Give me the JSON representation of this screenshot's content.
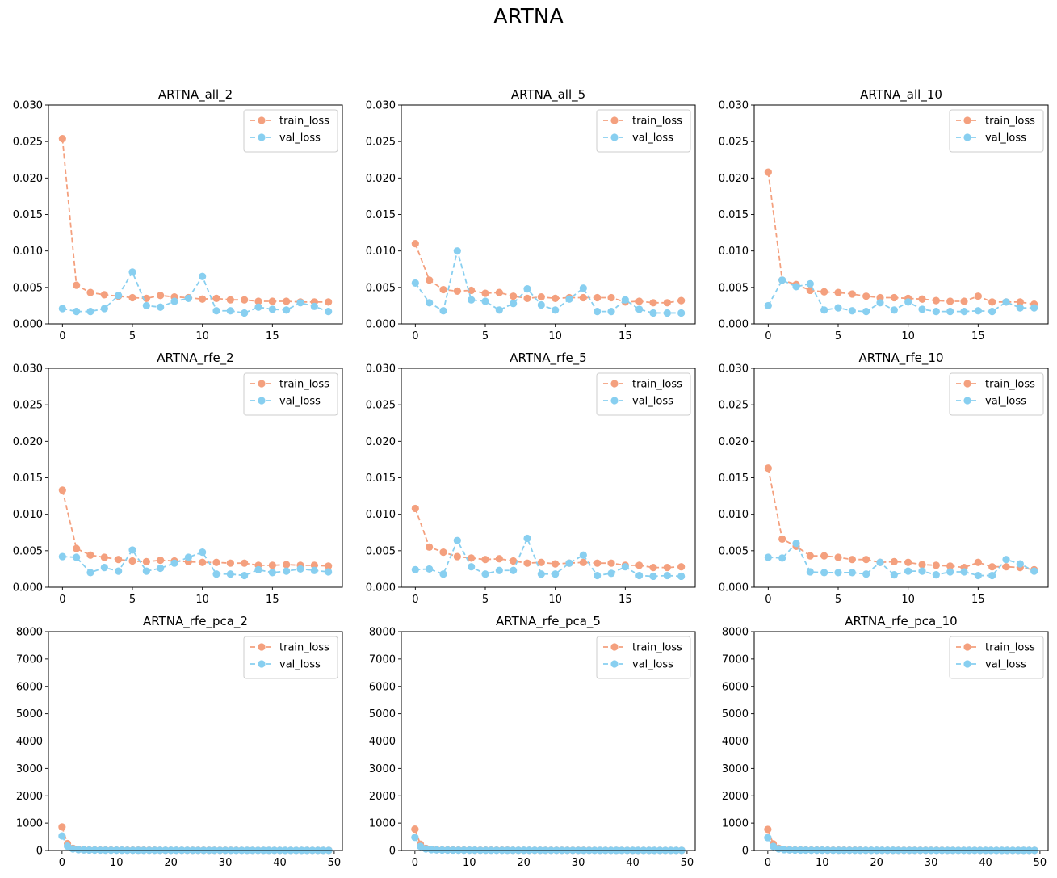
{
  "figure": {
    "title": "ARTNA",
    "colors": {
      "train_loss": "#F4A07E",
      "val_loss": "#88CFF0"
    }
  },
  "chart_data": [
    {
      "type": "line",
      "title": "ARTNA_all_2",
      "ylim": [
        0,
        0.03
      ],
      "xlim": [
        -1.0,
        20.0
      ],
      "yticks": [
        0,
        0.005,
        0.01,
        0.015,
        0.02,
        0.025,
        0.03
      ],
      "ytick_labels": [
        "0.000",
        "0.005",
        "0.010",
        "0.015",
        "0.020",
        "0.025",
        "0.030"
      ],
      "xticks": [
        0,
        5,
        10,
        15
      ],
      "xtick_labels": [
        "0",
        "5",
        "10",
        "15"
      ],
      "legend": "top-right",
      "series": [
        {
          "name": "train_loss",
          "values": [
            0.0254,
            0.0053,
            0.0043,
            0.004,
            0.0038,
            0.0036,
            0.0035,
            0.0039,
            0.0037,
            0.0036,
            0.0034,
            0.0035,
            0.0033,
            0.0033,
            0.0031,
            0.0031,
            0.0031,
            0.003,
            0.003,
            0.003
          ]
        },
        {
          "name": "val_loss",
          "values": [
            0.0021,
            0.0017,
            0.0017,
            0.0021,
            0.0039,
            0.0071,
            0.0025,
            0.0023,
            0.0031,
            0.0035,
            0.0065,
            0.0018,
            0.0018,
            0.0015,
            0.0023,
            0.002,
            0.0019,
            0.0029,
            0.0024,
            0.0017
          ]
        }
      ]
    },
    {
      "type": "line",
      "title": "ARTNA_all_5",
      "ylim": [
        0,
        0.03
      ],
      "xlim": [
        -1.0,
        20.0
      ],
      "yticks": [
        0,
        0.005,
        0.01,
        0.015,
        0.02,
        0.025,
        0.03
      ],
      "ytick_labels": [
        "0.000",
        "0.005",
        "0.010",
        "0.015",
        "0.020",
        "0.025",
        "0.030"
      ],
      "xticks": [
        0,
        5,
        10,
        15
      ],
      "xtick_labels": [
        "0",
        "5",
        "10",
        "15"
      ],
      "legend": "top-right",
      "series": [
        {
          "name": "train_loss",
          "values": [
            0.011,
            0.006,
            0.0047,
            0.0045,
            0.0046,
            0.0042,
            0.0043,
            0.0038,
            0.0035,
            0.0037,
            0.0035,
            0.0036,
            0.0036,
            0.0036,
            0.0036,
            0.003,
            0.0031,
            0.0029,
            0.0029,
            0.0032
          ]
        },
        {
          "name": "val_loss",
          "values": [
            0.0056,
            0.0029,
            0.0018,
            0.01,
            0.0033,
            0.0031,
            0.0019,
            0.0028,
            0.0048,
            0.0026,
            0.0019,
            0.0034,
            0.0049,
            0.0017,
            0.0017,
            0.0033,
            0.002,
            0.0015,
            0.0015,
            0.0015
          ]
        }
      ]
    },
    {
      "type": "line",
      "title": "ARTNA_all_10",
      "ylim": [
        0,
        0.03
      ],
      "xlim": [
        -1.0,
        20.0
      ],
      "yticks": [
        0,
        0.005,
        0.01,
        0.015,
        0.02,
        0.025,
        0.03
      ],
      "ytick_labels": [
        "0.000",
        "0.005",
        "0.010",
        "0.015",
        "0.020",
        "0.025",
        "0.030"
      ],
      "xticks": [
        0,
        5,
        10,
        15
      ],
      "xtick_labels": [
        "0",
        "5",
        "10",
        "15"
      ],
      "legend": "top-right",
      "series": [
        {
          "name": "train_loss",
          "values": [
            0.0208,
            0.006,
            0.0054,
            0.0046,
            0.0044,
            0.0043,
            0.0041,
            0.0038,
            0.0036,
            0.0036,
            0.0035,
            0.0034,
            0.0032,
            0.0031,
            0.0031,
            0.0038,
            0.003,
            0.003,
            0.003,
            0.0027
          ]
        },
        {
          "name": "val_loss",
          "values": [
            0.0025,
            0.006,
            0.0051,
            0.0055,
            0.0019,
            0.0022,
            0.0018,
            0.0017,
            0.0029,
            0.0019,
            0.003,
            0.002,
            0.0017,
            0.0017,
            0.0017,
            0.0018,
            0.0017,
            0.003,
            0.0022,
            0.0022
          ]
        }
      ]
    },
    {
      "type": "line",
      "title": "ARTNA_rfe_2",
      "ylim": [
        0,
        0.03
      ],
      "xlim": [
        -1.0,
        20.0
      ],
      "yticks": [
        0,
        0.005,
        0.01,
        0.015,
        0.02,
        0.025,
        0.03
      ],
      "ytick_labels": [
        "0.000",
        "0.005",
        "0.010",
        "0.015",
        "0.020",
        "0.025",
        "0.030"
      ],
      "xticks": [
        0,
        5,
        10,
        15
      ],
      "xtick_labels": [
        "0",
        "5",
        "10",
        "15"
      ],
      "legend": "top-right",
      "series": [
        {
          "name": "train_loss",
          "values": [
            0.0133,
            0.0053,
            0.0044,
            0.0041,
            0.0038,
            0.0036,
            0.0035,
            0.0037,
            0.0036,
            0.0035,
            0.0034,
            0.0034,
            0.0033,
            0.0033,
            0.003,
            0.003,
            0.0031,
            0.003,
            0.003,
            0.0029
          ]
        },
        {
          "name": "val_loss",
          "values": [
            0.0042,
            0.0041,
            0.002,
            0.0027,
            0.0022,
            0.0051,
            0.0022,
            0.0026,
            0.0033,
            0.0041,
            0.0048,
            0.0018,
            0.0018,
            0.0016,
            0.0024,
            0.002,
            0.0022,
            0.0025,
            0.0023,
            0.0021
          ]
        }
      ]
    },
    {
      "type": "line",
      "title": "ARTNA_rfe_5",
      "ylim": [
        0,
        0.03
      ],
      "xlim": [
        -1.0,
        20.0
      ],
      "yticks": [
        0,
        0.005,
        0.01,
        0.015,
        0.02,
        0.025,
        0.03
      ],
      "ytick_labels": [
        "0.000",
        "0.005",
        "0.010",
        "0.015",
        "0.020",
        "0.025",
        "0.030"
      ],
      "xticks": [
        0,
        5,
        10,
        15
      ],
      "xtick_labels": [
        "0",
        "5",
        "10",
        "15"
      ],
      "legend": "top-right",
      "series": [
        {
          "name": "train_loss",
          "values": [
            0.0108,
            0.0055,
            0.0048,
            0.0042,
            0.004,
            0.0038,
            0.0039,
            0.0036,
            0.0033,
            0.0034,
            0.0032,
            0.0033,
            0.0034,
            0.0033,
            0.0033,
            0.003,
            0.003,
            0.0027,
            0.0027,
            0.0028
          ]
        },
        {
          "name": "val_loss",
          "values": [
            0.0024,
            0.0025,
            0.0018,
            0.0064,
            0.0028,
            0.0018,
            0.0023,
            0.0023,
            0.0067,
            0.0018,
            0.0018,
            0.0033,
            0.0044,
            0.0016,
            0.0019,
            0.0028,
            0.0016,
            0.0015,
            0.0016,
            0.0015
          ]
        }
      ]
    },
    {
      "type": "line",
      "title": "ARTNA_rfe_10",
      "ylim": [
        0,
        0.03
      ],
      "xlim": [
        -1.0,
        20.0
      ],
      "yticks": [
        0,
        0.005,
        0.01,
        0.015,
        0.02,
        0.025,
        0.03
      ],
      "ytick_labels": [
        "0.000",
        "0.005",
        "0.010",
        "0.015",
        "0.020",
        "0.025",
        "0.030"
      ],
      "xticks": [
        0,
        5,
        10,
        15
      ],
      "xtick_labels": [
        "0",
        "5",
        "10",
        "15"
      ],
      "legend": "top-right",
      "series": [
        {
          "name": "train_loss",
          "values": [
            0.0163,
            0.0066,
            0.0056,
            0.0043,
            0.0043,
            0.0041,
            0.0038,
            0.0038,
            0.0034,
            0.0035,
            0.0034,
            0.0031,
            0.003,
            0.0029,
            0.0027,
            0.0034,
            0.0028,
            0.0028,
            0.0027,
            0.0024
          ]
        },
        {
          "name": "val_loss",
          "values": [
            0.0041,
            0.004,
            0.006,
            0.0021,
            0.002,
            0.002,
            0.002,
            0.0018,
            0.0034,
            0.0017,
            0.0022,
            0.0022,
            0.0017,
            0.0021,
            0.0021,
            0.0016,
            0.0016,
            0.0038,
            0.0032,
            0.0022
          ]
        }
      ]
    },
    {
      "type": "line",
      "title": "ARTNA_rfe_pca_2",
      "ylim": [
        0,
        8000
      ],
      "xlim": [
        -2.5,
        51.5
      ],
      "yticks": [
        0,
        1000,
        2000,
        3000,
        4000,
        5000,
        6000,
        7000,
        8000
      ],
      "ytick_labels": [
        "0",
        "1000",
        "2000",
        "3000",
        "4000",
        "5000",
        "6000",
        "7000",
        "8000"
      ],
      "xticks": [
        0,
        10,
        20,
        30,
        40,
        50
      ],
      "xtick_labels": [
        "0",
        "10",
        "20",
        "30",
        "40",
        "50"
      ],
      "legend": "top-right",
      "series": [
        {
          "name": "train_loss",
          "values": [
            860,
            250,
            80,
            40,
            25,
            20,
            18,
            16,
            15,
            14,
            13,
            12,
            12,
            11,
            11,
            10,
            10,
            10,
            9,
            9,
            9,
            9,
            8,
            8,
            8,
            8,
            8,
            7,
            7,
            7,
            7,
            7,
            7,
            6,
            6,
            6,
            6,
            6,
            6,
            6,
            5,
            5,
            5,
            5,
            5,
            5,
            5,
            5,
            5,
            5
          ]
        },
        {
          "name": "val_loss",
          "values": [
            530,
            160,
            60,
            30,
            20,
            16,
            14,
            13,
            12,
            11,
            10,
            10,
            9,
            9,
            9,
            8,
            8,
            8,
            8,
            7,
            7,
            7,
            7,
            7,
            6,
            6,
            6,
            6,
            6,
            6,
            6,
            5,
            5,
            5,
            5,
            5,
            5,
            5,
            5,
            5,
            5,
            4,
            4,
            4,
            4,
            4,
            4,
            4,
            4,
            4
          ]
        }
      ]
    },
    {
      "type": "line",
      "title": "ARTNA_rfe_pca_5",
      "ylim": [
        0,
        8000
      ],
      "xlim": [
        -2.5,
        51.5
      ],
      "yticks": [
        0,
        1000,
        2000,
        3000,
        4000,
        5000,
        6000,
        7000,
        8000
      ],
      "ytick_labels": [
        "0",
        "1000",
        "2000",
        "3000",
        "4000",
        "5000",
        "6000",
        "7000",
        "8000"
      ],
      "xticks": [
        0,
        10,
        20,
        30,
        40,
        50
      ],
      "xtick_labels": [
        "0",
        "10",
        "20",
        "30",
        "40",
        "50"
      ],
      "legend": "top-right",
      "series": [
        {
          "name": "train_loss",
          "values": [
            780,
            230,
            80,
            40,
            25,
            20,
            18,
            16,
            15,
            14,
            13,
            12,
            12,
            11,
            11,
            10,
            10,
            10,
            9,
            9,
            9,
            9,
            8,
            8,
            8,
            8,
            8,
            7,
            7,
            7,
            7,
            7,
            7,
            6,
            6,
            6,
            6,
            6,
            6,
            6,
            5,
            5,
            5,
            5,
            5,
            5,
            5,
            5,
            5,
            5
          ]
        },
        {
          "name": "val_loss",
          "values": [
            480,
            150,
            60,
            30,
            20,
            16,
            14,
            13,
            12,
            11,
            10,
            10,
            9,
            9,
            9,
            8,
            8,
            8,
            8,
            7,
            7,
            7,
            7,
            7,
            6,
            6,
            6,
            6,
            6,
            6,
            6,
            5,
            5,
            5,
            5,
            5,
            5,
            5,
            5,
            5,
            5,
            4,
            4,
            4,
            4,
            4,
            4,
            4,
            4,
            4
          ]
        }
      ]
    },
    {
      "type": "line",
      "title": "ARTNA_rfe_pca_10",
      "ylim": [
        0,
        8000
      ],
      "xlim": [
        -2.5,
        51.5
      ],
      "yticks": [
        0,
        1000,
        2000,
        3000,
        4000,
        5000,
        6000,
        7000,
        8000
      ],
      "ytick_labels": [
        "0",
        "1000",
        "2000",
        "3000",
        "4000",
        "5000",
        "6000",
        "7000",
        "8000"
      ],
      "xticks": [
        0,
        10,
        20,
        30,
        40,
        50
      ],
      "xtick_labels": [
        "0",
        "10",
        "20",
        "30",
        "40",
        "50"
      ],
      "legend": "top-right",
      "series": [
        {
          "name": "train_loss",
          "values": [
            770,
            240,
            80,
            40,
            25,
            20,
            18,
            16,
            15,
            14,
            13,
            12,
            12,
            11,
            11,
            10,
            10,
            10,
            9,
            9,
            9,
            9,
            8,
            8,
            8,
            8,
            8,
            7,
            7,
            7,
            7,
            7,
            7,
            6,
            6,
            6,
            6,
            6,
            6,
            6,
            5,
            5,
            5,
            5,
            5,
            5,
            5,
            5,
            5,
            5
          ]
        },
        {
          "name": "val_loss",
          "values": [
            470,
            150,
            60,
            30,
            20,
            16,
            14,
            13,
            12,
            11,
            10,
            10,
            9,
            9,
            9,
            8,
            8,
            8,
            8,
            7,
            7,
            7,
            7,
            7,
            6,
            6,
            6,
            6,
            6,
            6,
            6,
            5,
            5,
            5,
            5,
            5,
            5,
            5,
            5,
            5,
            5,
            4,
            4,
            4,
            4,
            4,
            4,
            4,
            4,
            4
          ]
        }
      ]
    }
  ]
}
